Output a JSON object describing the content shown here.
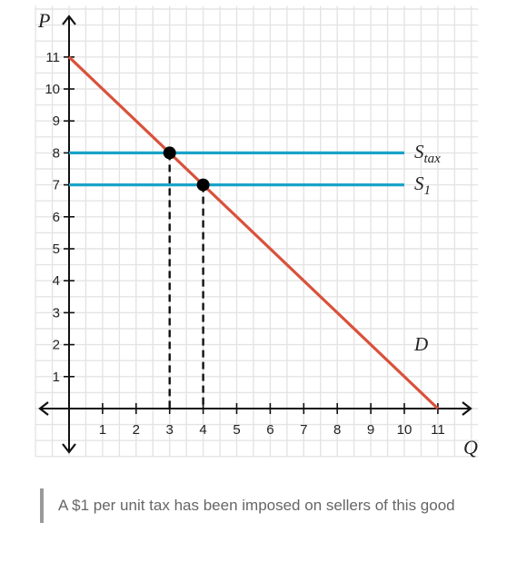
{
  "chart_data": {
    "type": "line",
    "xlabel": "Q",
    "ylabel": "P",
    "xlim": [
      0,
      11
    ],
    "ylim": [
      0,
      11
    ],
    "x_ticks": [
      "1",
      "2",
      "3",
      "4",
      "5",
      "6",
      "7",
      "8",
      "9",
      "10",
      "11"
    ],
    "y_ticks": [
      "1",
      "2",
      "3",
      "4",
      "5",
      "6",
      "7",
      "8",
      "9",
      "10",
      "11"
    ],
    "grid": true,
    "series": [
      {
        "name": "D",
        "color": "#d9513b",
        "x": [
          0,
          11
        ],
        "y": [
          11,
          0
        ]
      },
      {
        "name": "S_tax",
        "label_main": "S",
        "label_sub": "tax",
        "color": "#1aa3c8",
        "x": [
          0,
          10
        ],
        "y": [
          8,
          8
        ]
      },
      {
        "name": "S_1",
        "label_main": "S",
        "label_sub": "1",
        "color": "#1aa3c8",
        "x": [
          0,
          10
        ],
        "y": [
          7,
          7
        ]
      }
    ],
    "equilibrium_points": [
      {
        "x": 3,
        "y": 8
      },
      {
        "x": 4,
        "y": 7
      }
    ]
  },
  "caption": "A $1 per unit tax has been imposed on sellers of this good"
}
